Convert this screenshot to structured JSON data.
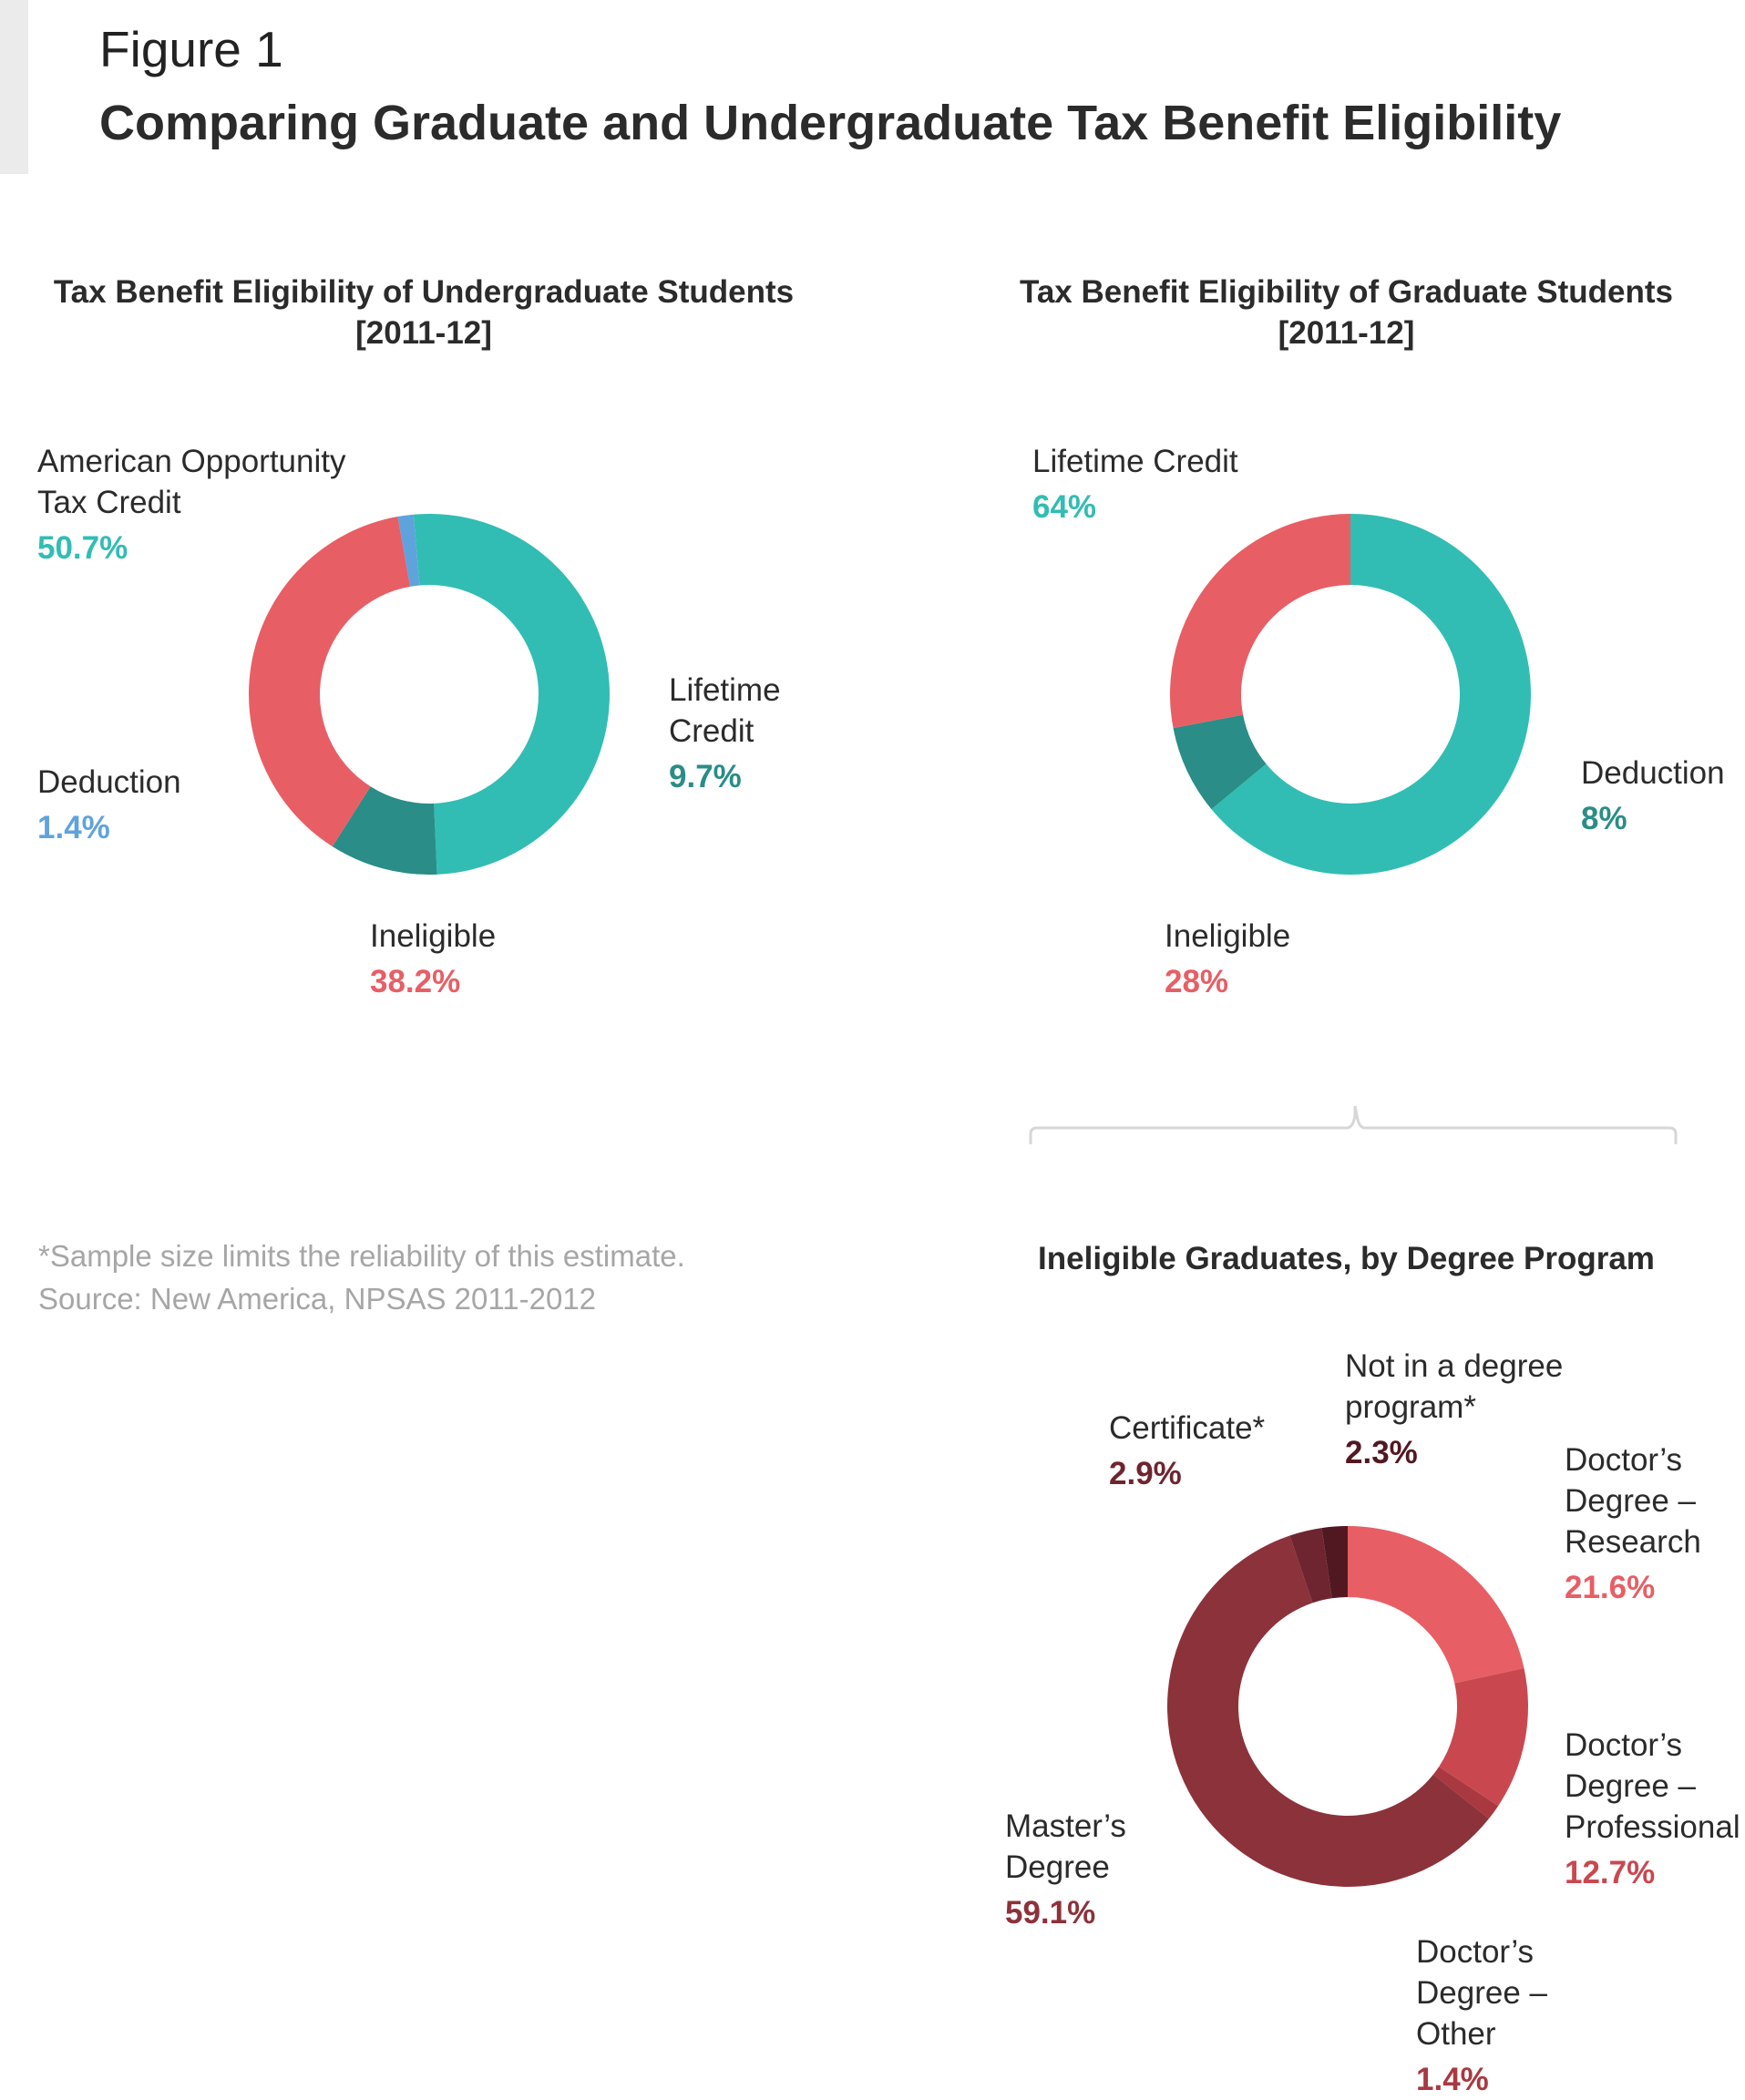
{
  "header": {
    "figure_label": "Figure 1",
    "title": "Comparing Graduate and Undergraduate Tax Benefit Eligibility"
  },
  "chart_data": [
    {
      "type": "pie",
      "style": "donut",
      "title_line1": "Tax Benefit Eligibility of Undergraduate Students",
      "title_line2": "[2011-12]",
      "slices": [
        {
          "label_lines": [
            "American Opportunity",
            "Tax Credit"
          ],
          "value": 50.7,
          "value_label": "50.7%",
          "color": "#31bdb3"
        },
        {
          "label_lines": [
            "Lifetime",
            "Credit"
          ],
          "value": 9.7,
          "value_label": "9.7%",
          "color": "#2a8d87"
        },
        {
          "label_lines": [
            "Ineligible"
          ],
          "value": 38.2,
          "value_label": "38.2%",
          "color": "#e85e65"
        },
        {
          "label_lines": [
            "Deduction"
          ],
          "value": 1.4,
          "value_label": "1.4%",
          "color": "#5fa3dc"
        }
      ]
    },
    {
      "type": "pie",
      "style": "donut",
      "title_line1": "Tax Benefit Eligibility of Graduate Students",
      "title_line2": "[2011-12]",
      "slices": [
        {
          "label_lines": [
            "Lifetime Credit"
          ],
          "value": 64,
          "value_label": "64%",
          "color": "#31bdb3"
        },
        {
          "label_lines": [
            "Deduction"
          ],
          "value": 8,
          "value_label": "8%",
          "color": "#2a8d87"
        },
        {
          "label_lines": [
            "Ineligible"
          ],
          "value": 28,
          "value_label": "28%",
          "color": "#e85e65"
        }
      ]
    },
    {
      "type": "pie",
      "style": "donut",
      "title_line1": "Ineligible Graduates, by Degree Program",
      "slices": [
        {
          "label_lines": [
            "Doctor’s",
            "Degree –",
            "Research"
          ],
          "value": 21.6,
          "value_label": "21.6%",
          "color": "#e85e65"
        },
        {
          "label_lines": [
            "Doctor’s",
            "Degree –",
            "Professional"
          ],
          "value": 12.7,
          "value_label": "12.7%",
          "color": "#c94850"
        },
        {
          "label_lines": [
            "Doctor’s",
            "Degree –",
            "Other"
          ],
          "value": 1.4,
          "value_label": "1.4%",
          "color": "#a93840"
        },
        {
          "label_lines": [
            "Master’s",
            "Degree"
          ],
          "value": 59.1,
          "value_label": "59.1%",
          "color": "#8c323b"
        },
        {
          "label_lines": [
            "Certificate*"
          ],
          "value": 2.9,
          "value_label": "2.9%",
          "color": "#6e2530"
        },
        {
          "label_lines": [
            "Not in a degree",
            "program*"
          ],
          "value": 2.3,
          "value_label": "2.3%",
          "color": "#521822"
        }
      ]
    }
  ],
  "footnote": {
    "line1": "*Sample size limits the reliability of this estimate.",
    "line2": "Source: New America, NPSAS 2011-2012"
  },
  "colors": {
    "accent_bar": "#ebebeb",
    "footnote": "#a6a6a6",
    "brace": "#d7d7d7"
  }
}
